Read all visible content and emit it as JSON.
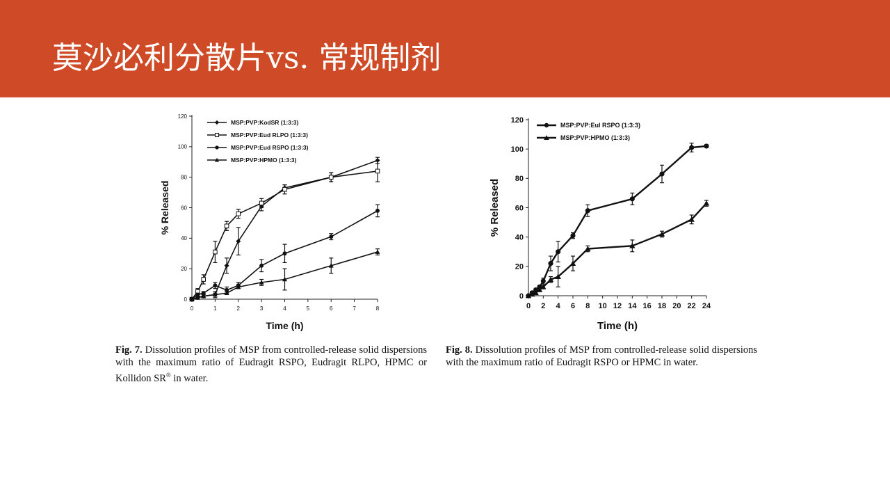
{
  "slide": {
    "title": "莫沙必利分散片vs. 常规制剂",
    "accent_color": "#cf4a26"
  },
  "figures": [
    {
      "caption_label": "Fig. 7.",
      "caption_text": "Dissolution profiles of MSP from controlled-release solid dispersions with the maximum ratio of Eudragit RSPO, Eudragit RLPO, HPMC or Kollidon SR",
      "caption_sup": "®",
      "caption_tail": " in water."
    },
    {
      "caption_label": "Fig. 8.",
      "caption_text": "Dissolution profiles of MSP from controlled-release solid dispersions with the maximum ratio of Eudragit RSPO or HPMC in water.",
      "caption_sup": "",
      "caption_tail": ""
    }
  ],
  "chart_data": [
    {
      "type": "line",
      "xlabel": "Time (h)",
      "ylabel": "% Released",
      "x_ticks": [
        "0",
        "1",
        "2",
        "3",
        "4",
        "5",
        "6",
        "7",
        "8"
      ],
      "y_ticks": [
        "0",
        "20",
        "40",
        "60",
        "80",
        "100",
        "120"
      ],
      "ylim": [
        0,
        120
      ],
      "xlim": [
        0,
        8
      ],
      "legend_position": "top-left",
      "series": [
        {
          "name": "MSP:PVP:KodSR (1:3:3)",
          "marker": "diamond",
          "x": [
            0,
            0.25,
            0.5,
            1,
            1.5,
            2,
            3,
            4,
            6,
            8
          ],
          "y": [
            0,
            1,
            2,
            3,
            22,
            38,
            61,
            73,
            80,
            91
          ],
          "err": [
            0,
            1,
            1,
            2,
            5,
            9,
            3,
            2,
            3,
            2
          ]
        },
        {
          "name": "MSP:PVP:Eud RLPO (1:3:3)",
          "marker": "square-open",
          "x": [
            0,
            0.25,
            0.5,
            1,
            1.5,
            2,
            3,
            4,
            6,
            8
          ],
          "y": [
            0,
            5,
            13,
            31,
            48,
            56,
            63,
            72,
            80,
            84
          ],
          "err": [
            0,
            2,
            3,
            7,
            3,
            3,
            3,
            3,
            3,
            7
          ]
        },
        {
          "name": "MSP:PVP:Eud RSPO (1:3:3)",
          "marker": "circle",
          "x": [
            0,
            0.25,
            0.5,
            1,
            1.5,
            2,
            3,
            4,
            6,
            8
          ],
          "y": [
            0,
            3,
            4,
            9,
            6,
            9,
            22,
            30,
            41,
            58
          ],
          "err": [
            0,
            1,
            1,
            2,
            2,
            2,
            4,
            6,
            2,
            4
          ]
        },
        {
          "name": "MSP:PVP:HPMO (1:3:3)",
          "marker": "triangle",
          "x": [
            0,
            0.25,
            0.5,
            1,
            1.5,
            2,
            3,
            4,
            6,
            8
          ],
          "y": [
            0,
            1,
            2,
            3,
            4,
            8,
            11,
            13,
            22,
            31
          ],
          "err": [
            0,
            1,
            1,
            1,
            1,
            1,
            2,
            7,
            5,
            2
          ]
        }
      ]
    },
    {
      "type": "line",
      "xlabel": "Time (h)",
      "ylabel": "% Released",
      "x_ticks": [
        "0",
        "2",
        "4",
        "6",
        "8",
        "10",
        "12",
        "14",
        "16",
        "18",
        "20",
        "22",
        "24"
      ],
      "y_ticks": [
        "0",
        "20",
        "40",
        "60",
        "80",
        "100",
        "120"
      ],
      "ylim": [
        0,
        120
      ],
      "xlim": [
        0,
        24
      ],
      "legend_position": "top-left",
      "series": [
        {
          "name": "MSP:PVP:Eul RSPO (1:3:3)",
          "marker": "circle",
          "x": [
            0,
            0.5,
            1,
            1.5,
            2,
            3,
            4,
            6,
            8,
            14,
            18,
            22,
            24
          ],
          "y": [
            0,
            2,
            4,
            6,
            10,
            22,
            30,
            41,
            58,
            66,
            83,
            101,
            102
          ],
          "err": [
            0,
            1,
            1,
            1,
            2,
            5,
            7,
            2,
            4,
            4,
            6,
            3,
            1
          ]
        },
        {
          "name": "MSP:PVP:HPMO (1:3:3)",
          "marker": "triangle",
          "x": [
            0,
            0.5,
            1,
            1.5,
            2,
            3,
            4,
            6,
            8,
            14,
            18,
            22,
            24
          ],
          "y": [
            0,
            1,
            2,
            4,
            6,
            11,
            13,
            22,
            32,
            34,
            42,
            52,
            63
          ],
          "err": [
            0,
            1,
            1,
            1,
            1,
            2,
            7,
            5,
            2,
            4,
            2,
            3,
            2
          ]
        }
      ]
    }
  ]
}
